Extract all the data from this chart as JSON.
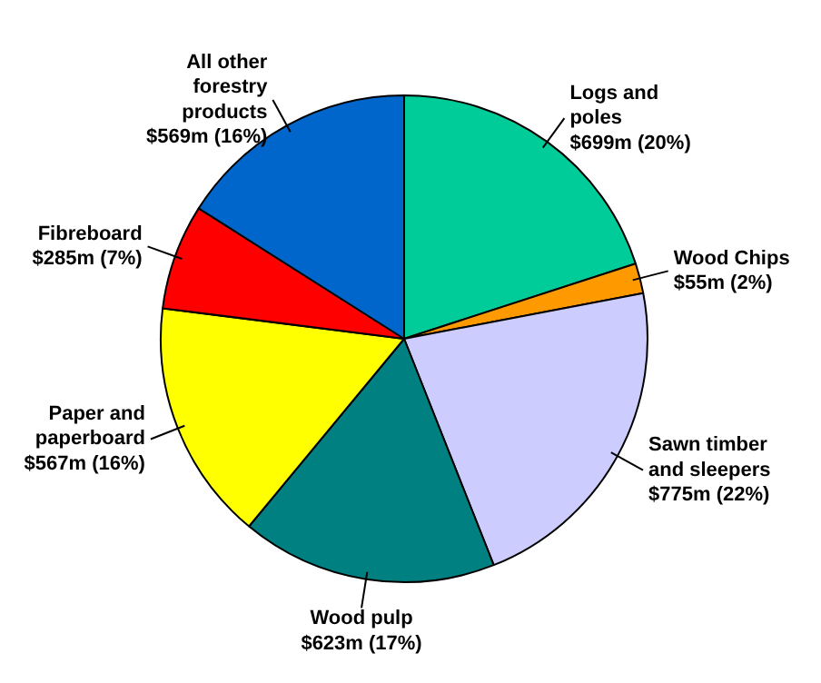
{
  "chart_data": {
    "type": "pie",
    "categories": [
      "Logs and\npoles",
      "Wood Chips",
      "Sawn timber\nand sleepers",
      "Wood pulp",
      "Paper and\npaperboard",
      "Fibreboard",
      "All other\nforestry\nproducts"
    ],
    "values": [
      20,
      2,
      22,
      17,
      16,
      7,
      16
    ],
    "value_labels": [
      "$699m (20%)",
      "$55m (2%)",
      "$775m (22%)",
      "$623m (17%)",
      "$567m (16%)",
      "$285m (7%)",
      "$569m (16%)"
    ],
    "colors": [
      "#00cc99",
      "#ff9900",
      "#ccccff",
      "#008080",
      "#ffff00",
      "#ff0000",
      "#0066cc"
    ]
  }
}
